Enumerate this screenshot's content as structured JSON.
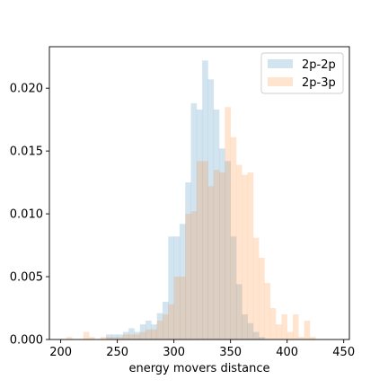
{
  "chart_data": {
    "type": "histogram",
    "xlabel": "energy movers distance",
    "ylabel": "",
    "xlim": [
      190,
      455
    ],
    "ylim": [
      0,
      0.0233
    ],
    "x_ticks": [
      200,
      250,
      300,
      350,
      400,
      450
    ],
    "y_ticks": [
      0.0,
      0.005,
      0.01,
      0.015,
      0.02
    ],
    "y_tick_labels": [
      "0.000",
      "0.005",
      "0.010",
      "0.015",
      "0.020"
    ],
    "legend_position": "top-right",
    "grid": false,
    "series": [
      {
        "name": "2p-2p",
        "color": "#1f77b4",
        "opacity": 0.2,
        "bins": [
          [
            240,
            245,
            0.0004
          ],
          [
            245,
            250,
            0.0004
          ],
          [
            250,
            255,
            0.0004
          ],
          [
            255,
            260,
            0.0006
          ],
          [
            260,
            265,
            0.0009
          ],
          [
            265,
            270,
            0.0006
          ],
          [
            270,
            275,
            0.0012
          ],
          [
            275,
            280,
            0.0015
          ],
          [
            280,
            285,
            0.0012
          ],
          [
            285,
            290,
            0.0021
          ],
          [
            290,
            295,
            0.003
          ],
          [
            295,
            300,
            0.0082
          ],
          [
            300,
            305,
            0.0082
          ],
          [
            305,
            310,
            0.0092
          ],
          [
            310,
            315,
            0.0125
          ],
          [
            315,
            320,
            0.0188
          ],
          [
            320,
            325,
            0.0183
          ],
          [
            325,
            330,
            0.0222
          ],
          [
            330,
            335,
            0.0207
          ],
          [
            335,
            340,
            0.0183
          ],
          [
            340,
            345,
            0.0152
          ],
          [
            345,
            350,
            0.0142
          ],
          [
            350,
            355,
            0.0082
          ],
          [
            355,
            360,
            0.0044
          ],
          [
            360,
            365,
            0.002
          ],
          [
            365,
            370,
            0.0013
          ],
          [
            370,
            375,
            0.0006
          ],
          [
            375,
            380,
            0.0002
          ]
        ]
      },
      {
        "name": "2p-3p",
        "color": "#ff7f0e",
        "opacity": 0.2,
        "bins": [
          [
            205,
            210,
            0.0002
          ],
          [
            220,
            225,
            0.0006
          ],
          [
            225,
            230,
            0.0002
          ],
          [
            235,
            240,
            0.0002
          ],
          [
            240,
            245,
            0.0002
          ],
          [
            245,
            250,
            0.0002
          ],
          [
            250,
            255,
            0.0002
          ],
          [
            255,
            260,
            0.0004
          ],
          [
            260,
            265,
            0.0004
          ],
          [
            265,
            270,
            0.0004
          ],
          [
            270,
            275,
            0.0006
          ],
          [
            275,
            280,
            0.0008
          ],
          [
            280,
            285,
            0.0008
          ],
          [
            285,
            290,
            0.0015
          ],
          [
            290,
            295,
            0.002
          ],
          [
            295,
            300,
            0.0028
          ],
          [
            300,
            305,
            0.005
          ],
          [
            305,
            310,
            0.005
          ],
          [
            310,
            315,
            0.01
          ],
          [
            315,
            320,
            0.0102
          ],
          [
            320,
            325,
            0.0142
          ],
          [
            325,
            330,
            0.0142
          ],
          [
            330,
            335,
            0.0122
          ],
          [
            335,
            340,
            0.0135
          ],
          [
            340,
            345,
            0.0133
          ],
          [
            345,
            350,
            0.0185
          ],
          [
            350,
            355,
            0.0161
          ],
          [
            355,
            360,
            0.0139
          ],
          [
            360,
            365,
            0.0131
          ],
          [
            365,
            370,
            0.0133
          ],
          [
            370,
            375,
            0.0081
          ],
          [
            375,
            380,
            0.0065
          ],
          [
            380,
            385,
            0.0045
          ],
          [
            385,
            390,
            0.0025
          ],
          [
            390,
            395,
            0.0012
          ],
          [
            395,
            400,
            0.002
          ],
          [
            400,
            405,
            0.0006
          ],
          [
            405,
            410,
            0.002
          ],
          [
            410,
            415,
            0.0002
          ],
          [
            415,
            420,
            0.0015
          ],
          [
            420,
            425,
            0.0002
          ]
        ]
      }
    ]
  }
}
